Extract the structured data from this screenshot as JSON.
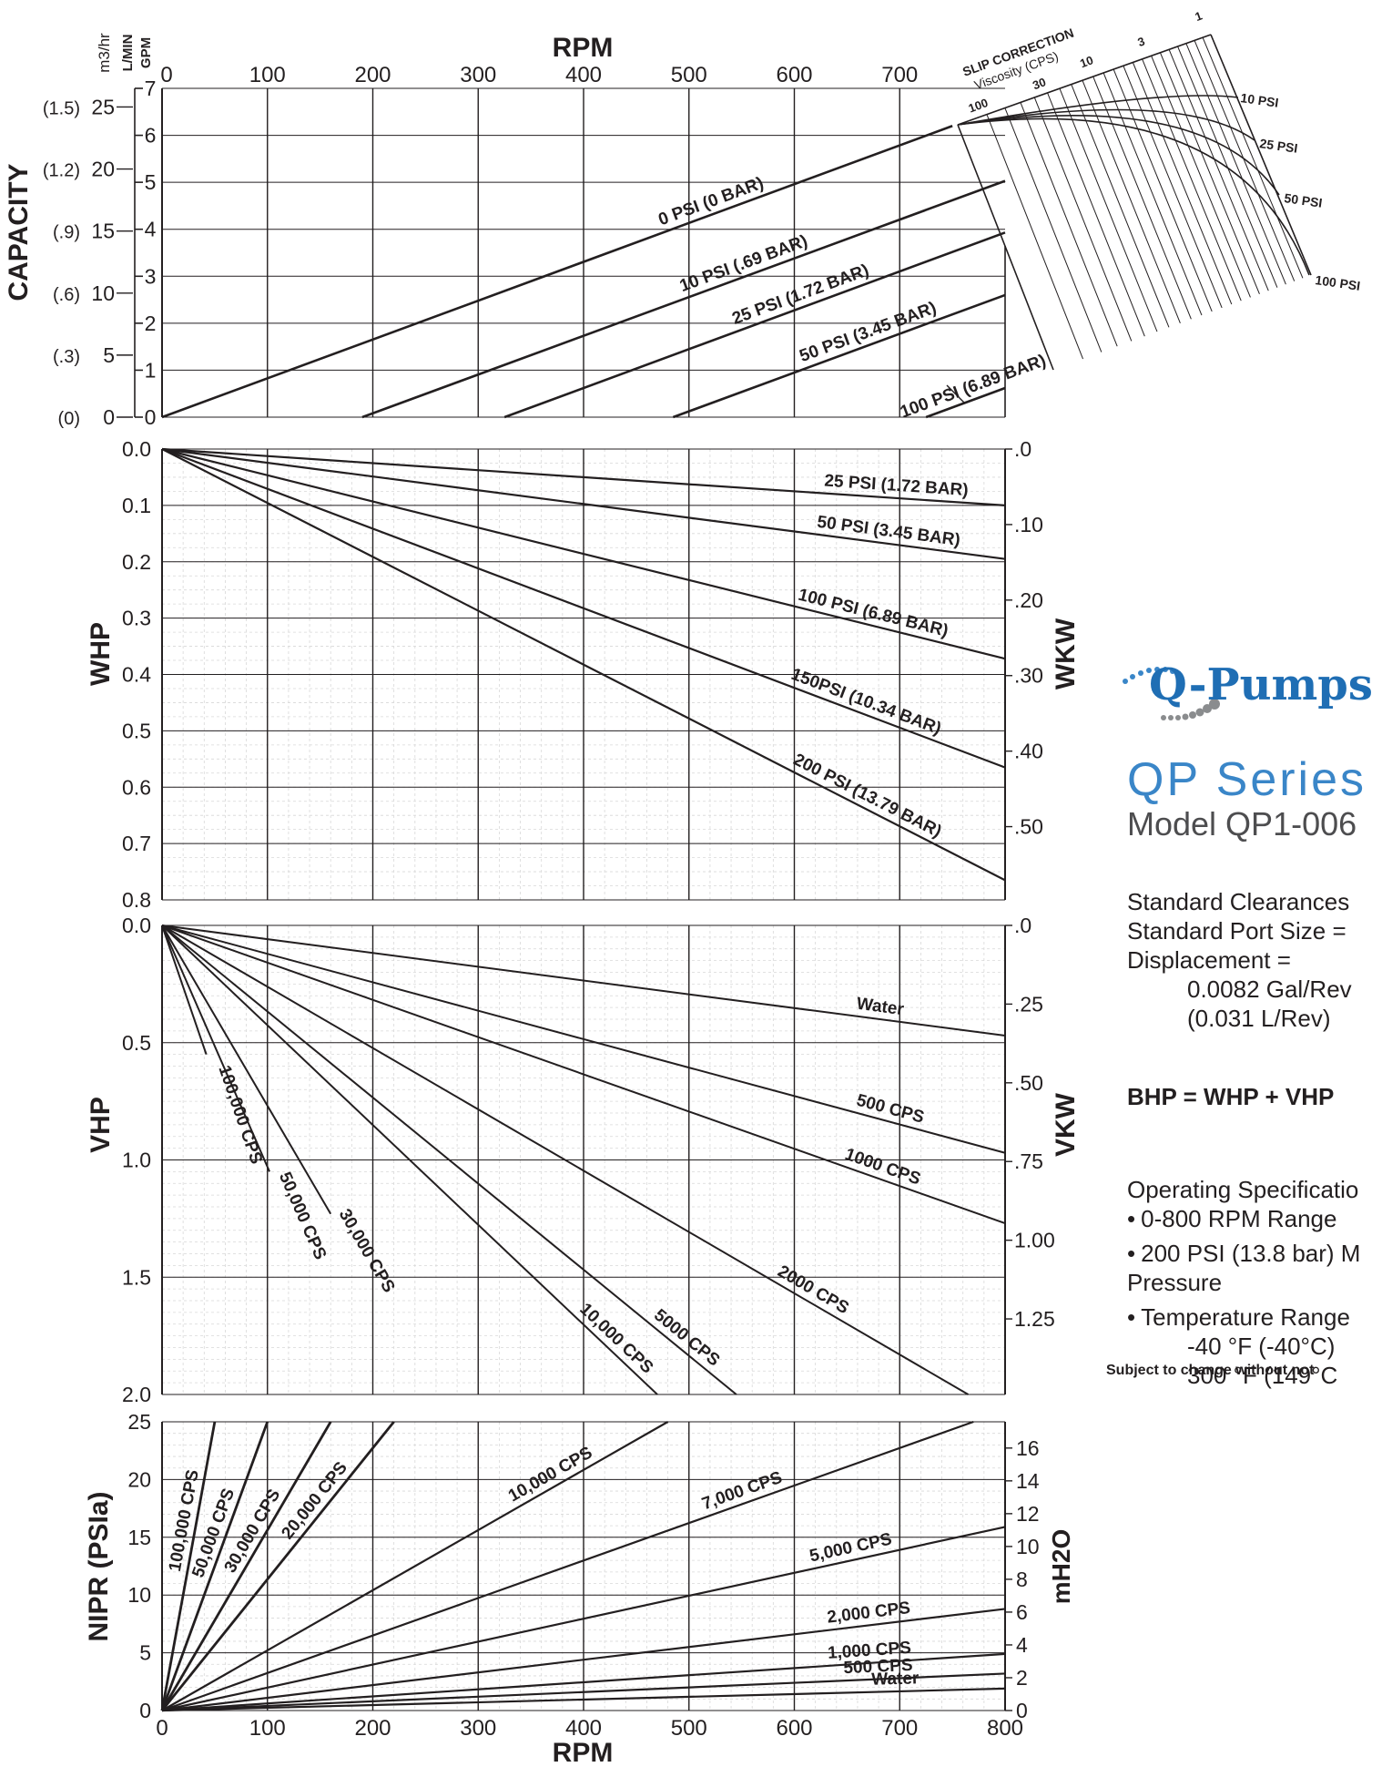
{
  "chart_data": [
    {
      "type": "line",
      "title": "",
      "xlabel": "RPM",
      "xlim": [
        0,
        800
      ],
      "xticks": [
        0,
        100,
        200,
        300,
        400,
        500,
        600,
        700
      ],
      "ylabel": "CAPACITY",
      "y_units": [
        "m3/hr",
        "L/MIN",
        "GPM"
      ],
      "ylim": [
        0,
        7
      ],
      "gpm_ticks": [
        "0",
        "1",
        "2",
        "3",
        "4",
        "5",
        "6",
        "7"
      ],
      "lmin_ticks": [
        {
          "v": 0,
          "t": "0"
        },
        {
          "v": 5,
          "t": "5"
        },
        {
          "v": 10,
          "t": "10"
        },
        {
          "v": 15,
          "t": "15"
        },
        {
          "v": 20,
          "t": "20"
        },
        {
          "v": 25,
          "t": "25"
        }
      ],
      "m3hr_ticks": [
        {
          "v": 0,
          "t": "(0)"
        },
        {
          "v": 5,
          "t": "(.3)"
        },
        {
          "v": 10,
          "t": "(.6)"
        },
        {
          "v": 15,
          "t": "(.9)"
        },
        {
          "v": 20,
          "t": "(1.2)"
        },
        {
          "v": 25,
          "t": "(1.5)"
        }
      ],
      "series": [
        {
          "name": "0 PSI (0 BAR)",
          "x": [
            0,
            750
          ],
          "y": [
            0,
            6.2
          ]
        },
        {
          "name": "10 PSI (.69 BAR)",
          "x": [
            190,
            800
          ],
          "y": [
            0,
            5.03
          ]
        },
        {
          "name": "25 PSI (1.72 BAR)",
          "x": [
            325,
            800
          ],
          "y": [
            0,
            3.93
          ]
        },
        {
          "name": "50 PSI (3.45 BAR)",
          "x": [
            485,
            800
          ],
          "y": [
            0,
            2.6
          ]
        },
        {
          "name": "100 PSI (6.89 BAR)",
          "x": [
            725,
            800
          ],
          "y": [
            0,
            0.62
          ]
        }
      ],
      "slip_correction": {
        "title": "SLIP CORRECTION",
        "subtitle": "Viscosity (CPS)",
        "viscosity_labels": [
          "100",
          "30",
          "10",
          "3",
          "1"
        ],
        "pressure_labels": [
          "10 PSI",
          "25 PSI",
          "50 PSI",
          "100 PSI"
        ]
      }
    },
    {
      "type": "line",
      "xlabel": "",
      "xlim": [
        0,
        800
      ],
      "ylabel": "WHP",
      "y2label": "WKW",
      "ylim": [
        0.8,
        0.0
      ],
      "yticks": [
        "0.0",
        "0.1",
        "0.2",
        "0.3",
        "0.4",
        "0.5",
        "0.6",
        "0.7",
        "0.8"
      ],
      "y2ticks": [
        {
          "v": 0,
          "t": ".0"
        },
        {
          "v": 0.1,
          "t": ".10"
        },
        {
          "v": 0.2,
          "t": ".20"
        },
        {
          "v": 0.3,
          "t": ".30"
        },
        {
          "v": 0.4,
          "t": ".40"
        },
        {
          "v": 0.5,
          "t": ".50"
        }
      ],
      "series": [
        {
          "name": "25 PSI (1.72 BAR)",
          "x": [
            0,
            800
          ],
          "y": [
            0,
            0.1
          ]
        },
        {
          "name": "50 PSI (3.45 BAR)",
          "x": [
            0,
            800
          ],
          "y": [
            0,
            0.195
          ]
        },
        {
          "name": "100 PSI (6.89 BAR)",
          "x": [
            0,
            800
          ],
          "y": [
            0,
            0.372
          ]
        },
        {
          "name": "150PSI (10.34 BAR)",
          "x": [
            0,
            800
          ],
          "y": [
            0,
            0.565
          ]
        },
        {
          "name": "200 PSI (13.79 BAR)",
          "x": [
            0,
            800
          ],
          "y": [
            0,
            0.765
          ]
        }
      ]
    },
    {
      "type": "line",
      "xlabel": "",
      "xlim": [
        0,
        800
      ],
      "ylabel": "VHP",
      "y2label": "VKW",
      "ylim": [
        2.0,
        0.0
      ],
      "yticks": [
        {
          "v": 0,
          "t": "0.0"
        },
        {
          "v": 0.5,
          "t": "0.5"
        },
        {
          "v": 1.0,
          "t": "1.0"
        },
        {
          "v": 1.5,
          "t": "1.5"
        },
        {
          "v": 2.0,
          "t": "2.0"
        }
      ],
      "y2ticks": [
        {
          "v": 0,
          "t": ".0"
        },
        {
          "v": 0.25,
          "t": ".25"
        },
        {
          "v": 0.5,
          "t": ".50"
        },
        {
          "v": 0.75,
          "t": ".75"
        },
        {
          "v": 1.0,
          "t": "1.00"
        },
        {
          "v": 1.25,
          "t": "1.25"
        }
      ],
      "series": [
        {
          "name": "Water",
          "x": [
            0,
            800
          ],
          "y": [
            0,
            0.47
          ]
        },
        {
          "name": "500 CPS",
          "x": [
            0,
            800
          ],
          "y": [
            0,
            0.97
          ]
        },
        {
          "name": "1000 CPS",
          "x": [
            0,
            800
          ],
          "y": [
            0,
            1.27
          ]
        },
        {
          "name": "2000 CPS",
          "x": [
            0,
            765
          ],
          "y": [
            0,
            2.0
          ]
        },
        {
          "name": "5000 CPS",
          "x": [
            0,
            545
          ],
          "y": [
            0,
            2.0
          ]
        },
        {
          "name": "10,000 CPS",
          "x": [
            0,
            470
          ],
          "y": [
            0,
            2.0
          ]
        },
        {
          "name": "30,000 CPS",
          "x": [
            0,
            160
          ],
          "y": [
            0,
            1.23
          ]
        },
        {
          "name": "50,000 CPS",
          "x": [
            0,
            102
          ],
          "y": [
            0,
            1.05
          ]
        },
        {
          "name": "100,000 CPS",
          "x": [
            0,
            42
          ],
          "y": [
            0,
            0.55
          ]
        }
      ]
    },
    {
      "type": "line",
      "xlabel": "RPM",
      "xlim": [
        0,
        800
      ],
      "xticks": [
        "0",
        "100",
        "200",
        "300",
        "400",
        "500",
        "600",
        "700",
        "800"
      ],
      "ylabel": "NIPR (PSIa)",
      "y2label": "mH2O",
      "ylim": [
        0,
        25
      ],
      "yticks": [
        "0",
        "5",
        "10",
        "15",
        "20",
        "25"
      ],
      "y2ticks": [
        "0",
        "2",
        "4",
        "6",
        "8",
        "10",
        "12",
        "14",
        "16"
      ],
      "series": [
        {
          "name": "Water",
          "x": [
            0,
            800
          ],
          "y": [
            0,
            1.9
          ]
        },
        {
          "name": "500 CPS",
          "x": [
            0,
            800
          ],
          "y": [
            0,
            3.2
          ]
        },
        {
          "name": "1,000 CPS",
          "x": [
            0,
            800
          ],
          "y": [
            0,
            4.9
          ]
        },
        {
          "name": "2,000 CPS",
          "x": [
            0,
            800
          ],
          "y": [
            0,
            8.8
          ]
        },
        {
          "name": "5,000 CPS",
          "x": [
            0,
            800
          ],
          "y": [
            0,
            15.9
          ]
        },
        {
          "name": "7,000 CPS",
          "x": [
            0,
            770
          ],
          "y": [
            0,
            25
          ]
        },
        {
          "name": "10,000 CPS",
          "x": [
            0,
            480
          ],
          "y": [
            0,
            25
          ]
        },
        {
          "name": "20,000 CPS",
          "x": [
            0,
            220
          ],
          "y": [
            0,
            25
          ]
        },
        {
          "name": "30,000 CPS",
          "x": [
            0,
            160
          ],
          "y": [
            0,
            25
          ]
        },
        {
          "name": "50,000 CPS",
          "x": [
            0,
            100
          ],
          "y": [
            0,
            25
          ]
        },
        {
          "name": "100,000 CPS",
          "x": [
            0,
            50
          ],
          "y": [
            0,
            25
          ]
        }
      ]
    }
  ],
  "sidebar": {
    "logo": "Q-Pumps",
    "series_name": "QP Series",
    "model": "Model QP1-006",
    "clearances": "Standard Clearances",
    "port_size": "Standard Port Size =",
    "displacement": "Displacement =",
    "disp_gal": "0.0082 Gal/Rev",
    "disp_l": "(0.031 L/Rev)",
    "formula": "BHP = WHP + VHP",
    "op_spec_title": "Operating Specificatio",
    "op_rpm": "0-800 RPM Range",
    "op_pressure": "200 PSI (13.8 bar) M",
    "op_pressure2": "Pressure",
    "op_temp": "Temperature Range",
    "op_temp_low": "-40 °F (-40°C)",
    "op_temp_high": "300 °F (149°C",
    "notice": "Subject to change without not"
  }
}
